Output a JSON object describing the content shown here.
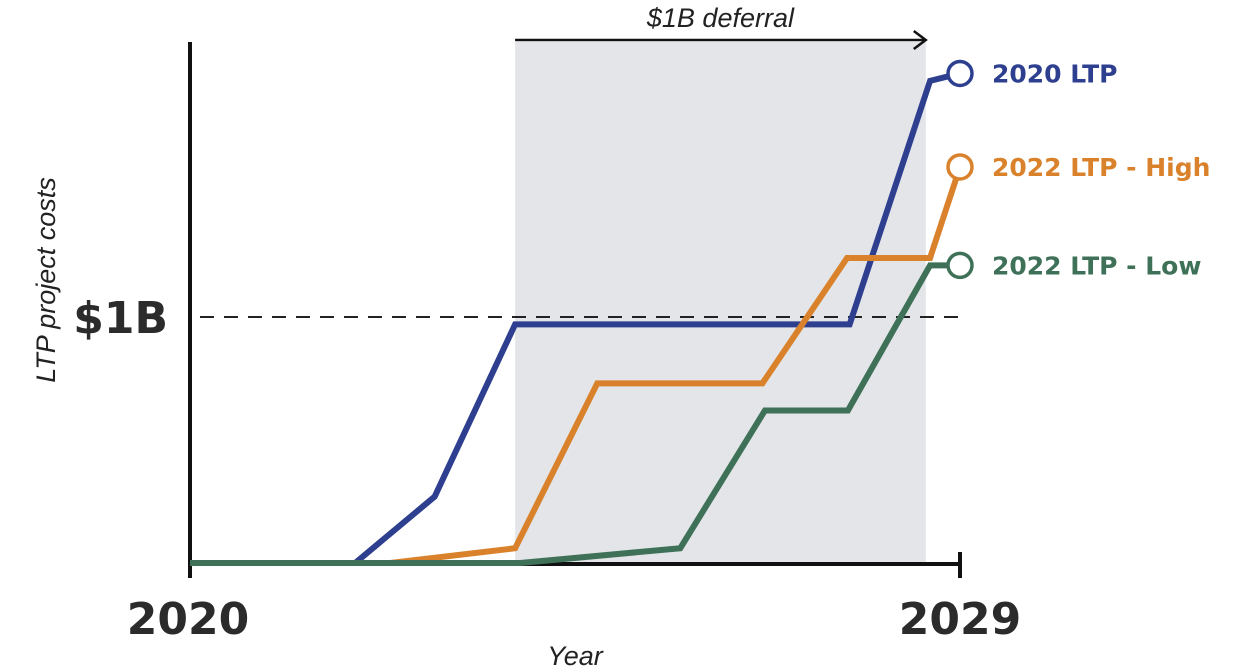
{
  "chart_data": {
    "type": "line",
    "title": "",
    "xlabel": "Year",
    "ylabel": "LTP project costs",
    "xlim": [
      2020,
      2029
    ],
    "ylim": [
      0,
      2.05
    ],
    "x_tick_labels": [
      "2020",
      "2029"
    ],
    "x_ticks": [
      2020,
      2029
    ],
    "y_reference": {
      "value": 1,
      "label": "$1B",
      "style": "dashed"
    },
    "shaded_region": {
      "x_start": 2023.8,
      "x_end": 2028.6,
      "label": "$1B deferral"
    },
    "grid": false,
    "series": [
      {
        "name": "2020 LTP",
        "color": "#2e3f8f",
        "x": [
          2020,
          2021.93,
          2022.86,
          2023.8,
          2027.71,
          2028.65,
          2029
        ],
        "values": [
          0,
          0,
          0.27,
          0.97,
          0.97,
          1.96,
          1.99
        ]
      },
      {
        "name": "2022 LTP - High",
        "color": "#d9822b",
        "x": [
          2020,
          2022.34,
          2023.8,
          2024.76,
          2026.69,
          2027.68,
          2028.65,
          2029
        ],
        "values": [
          0,
          0,
          0.06,
          0.73,
          0.73,
          1.24,
          1.24,
          1.61
        ]
      },
      {
        "name": "2022 LTP - Low",
        "color": "#3e7158",
        "x": [
          2020,
          2023.86,
          2025.73,
          2026.72,
          2027.69,
          2028.65,
          2029
        ],
        "values": [
          0,
          0,
          0.06,
          0.62,
          0.62,
          1.21,
          1.21
        ]
      }
    ]
  }
}
